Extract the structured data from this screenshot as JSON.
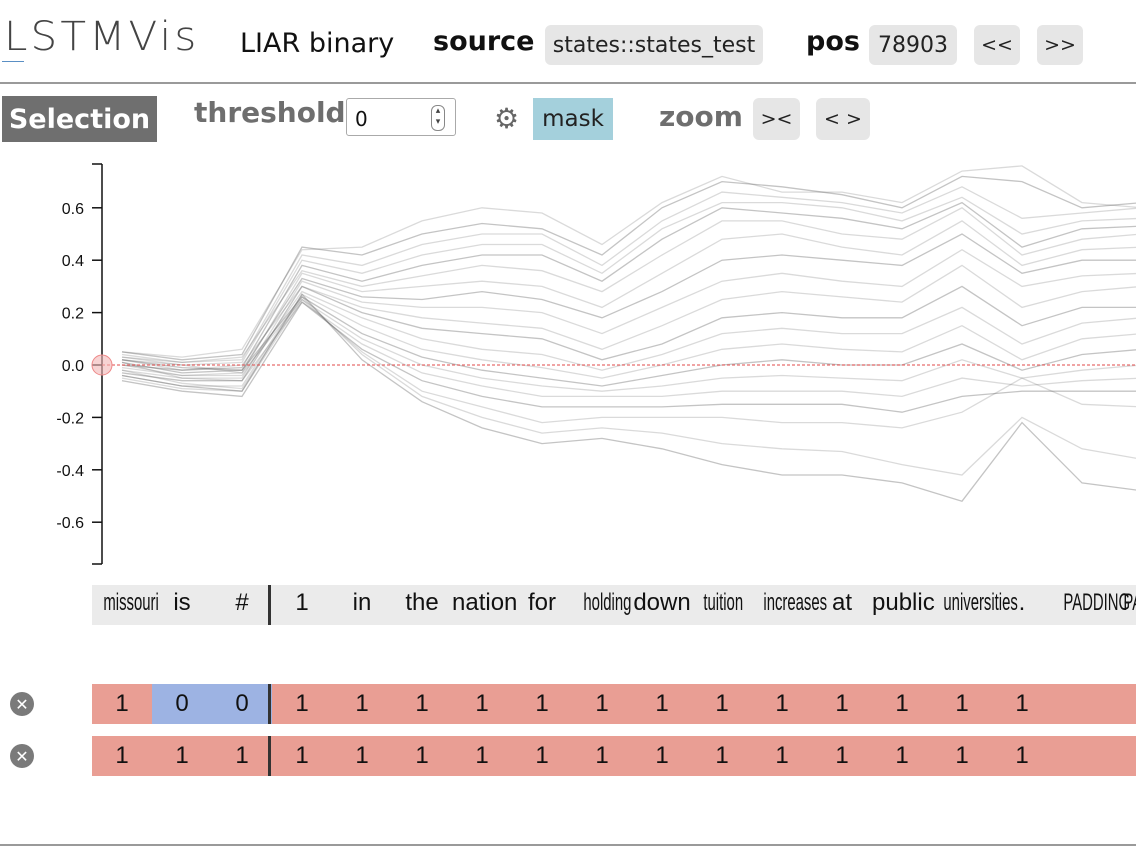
{
  "header": {
    "logo": "LSTMVis",
    "dataset": "LIAR binary",
    "source_label": "source",
    "source_value": "states::states_test",
    "pos_label": "pos",
    "pos_value": "78903",
    "prev_label": "<<",
    "next_label": ">>"
  },
  "toolbar": {
    "selection_label": "Selection",
    "threshold_label": "threshold",
    "threshold_value": "0",
    "settings_icon": "gear-icon",
    "mask_label": "mask",
    "zoom_label": "zoom",
    "zoom_in_label": "><",
    "zoom_out_label": "< >"
  },
  "chart_data": {
    "type": "line",
    "ylim": [
      -0.75,
      0.75
    ],
    "yticks": [
      "0.6",
      "0.4",
      "0.2",
      "0.0",
      "-0.2",
      "-0.4",
      "-0.6"
    ],
    "threshold": 0.0,
    "x": [
      "missouri",
      "is",
      "#",
      "1",
      "in",
      "the",
      "nation",
      "for",
      "holding",
      "down",
      "tuition",
      "increases",
      "at",
      "public",
      "universities",
      ".",
      "PADDING",
      "PADDING"
    ],
    "series": [
      {
        "values": [
          0.05,
          0.02,
          0.04,
          0.45,
          0.42,
          0.5,
          0.54,
          0.52,
          0.42,
          0.6,
          0.7,
          0.68,
          0.65,
          0.6,
          0.72,
          0.7,
          0.6,
          0.62
        ]
      },
      {
        "values": [
          0.03,
          0.01,
          0.02,
          0.42,
          0.38,
          0.46,
          0.5,
          0.5,
          0.38,
          0.55,
          0.66,
          0.64,
          0.62,
          0.58,
          0.68,
          0.56,
          0.58,
          0.6
        ]
      },
      {
        "values": [
          0.02,
          0.0,
          0.01,
          0.4,
          0.35,
          0.42,
          0.46,
          0.46,
          0.35,
          0.52,
          0.62,
          0.62,
          0.6,
          0.55,
          0.64,
          0.5,
          0.55,
          0.56
        ]
      },
      {
        "values": [
          0.0,
          -0.02,
          -0.01,
          0.38,
          0.32,
          0.38,
          0.42,
          0.42,
          0.32,
          0.48,
          0.6,
          0.58,
          0.56,
          0.52,
          0.62,
          0.45,
          0.52,
          0.53
        ]
      },
      {
        "values": [
          0.04,
          0.01,
          0.03,
          0.36,
          0.3,
          0.34,
          0.38,
          0.36,
          0.28,
          0.42,
          0.55,
          0.55,
          0.5,
          0.48,
          0.6,
          0.42,
          0.48,
          0.5
        ]
      },
      {
        "values": [
          -0.01,
          -0.04,
          -0.03,
          0.35,
          0.28,
          0.3,
          0.32,
          0.3,
          0.22,
          0.35,
          0.48,
          0.5,
          0.45,
          0.42,
          0.55,
          0.38,
          0.44,
          0.45
        ]
      },
      {
        "values": [
          0.01,
          -0.03,
          -0.02,
          0.33,
          0.26,
          0.25,
          0.28,
          0.25,
          0.18,
          0.28,
          0.4,
          0.42,
          0.4,
          0.38,
          0.5,
          0.35,
          0.4,
          0.4
        ]
      },
      {
        "values": [
          -0.02,
          -0.05,
          -0.05,
          0.32,
          0.24,
          0.22,
          0.22,
          0.2,
          0.12,
          0.22,
          0.32,
          0.35,
          0.32,
          0.3,
          0.44,
          0.3,
          0.34,
          0.35
        ]
      },
      {
        "values": [
          0.02,
          -0.02,
          0.0,
          0.3,
          0.22,
          0.18,
          0.16,
          0.14,
          0.06,
          0.15,
          0.25,
          0.28,
          0.26,
          0.24,
          0.38,
          0.22,
          0.28,
          0.3
        ]
      },
      {
        "values": [
          -0.03,
          -0.06,
          -0.06,
          0.3,
          0.2,
          0.14,
          0.12,
          0.1,
          0.02,
          0.08,
          0.18,
          0.2,
          0.18,
          0.18,
          0.3,
          0.15,
          0.22,
          0.22
        ]
      },
      {
        "values": [
          0.0,
          -0.04,
          -0.04,
          0.28,
          0.18,
          0.1,
          0.06,
          0.04,
          -0.02,
          0.04,
          0.12,
          0.14,
          0.12,
          0.12,
          0.22,
          0.08,
          0.16,
          0.18
        ]
      },
      {
        "values": [
          -0.04,
          -0.08,
          -0.08,
          0.27,
          0.15,
          0.06,
          0.02,
          -0.01,
          -0.05,
          0.0,
          0.06,
          0.08,
          0.06,
          0.05,
          0.15,
          0.02,
          0.1,
          0.12
        ]
      },
      {
        "values": [
          0.02,
          -0.01,
          -0.02,
          0.26,
          0.12,
          0.03,
          -0.02,
          -0.05,
          -0.08,
          -0.04,
          0.0,
          0.02,
          0.0,
          0.0,
          0.08,
          -0.02,
          0.04,
          0.06
        ]
      },
      {
        "values": [
          -0.05,
          -0.09,
          -0.1,
          0.25,
          0.1,
          0.0,
          -0.05,
          -0.08,
          -0.1,
          -0.08,
          -0.05,
          -0.04,
          -0.05,
          -0.06,
          0.02,
          -0.05,
          -0.02,
          0.0
        ]
      },
      {
        "values": [
          0.01,
          -0.05,
          -0.06,
          0.24,
          0.08,
          -0.03,
          -0.08,
          -0.12,
          -0.12,
          -0.12,
          -0.1,
          -0.1,
          -0.1,
          -0.12,
          -0.05,
          -0.08,
          -0.06,
          -0.05
        ]
      },
      {
        "values": [
          -0.06,
          -0.1,
          -0.12,
          0.24,
          0.06,
          -0.06,
          -0.12,
          -0.16,
          -0.16,
          -0.16,
          -0.15,
          -0.15,
          -0.15,
          -0.18,
          -0.12,
          -0.1,
          -0.1,
          -0.1
        ]
      },
      {
        "values": [
          0.03,
          0.0,
          -0.03,
          0.25,
          0.05,
          -0.1,
          -0.16,
          -0.22,
          -0.2,
          -0.2,
          -0.2,
          -0.22,
          -0.22,
          -0.24,
          -0.18,
          -0.05,
          -0.15,
          -0.16
        ]
      },
      {
        "values": [
          -0.02,
          -0.07,
          -0.09,
          0.26,
          0.04,
          -0.12,
          -0.2,
          -0.26,
          -0.24,
          -0.26,
          -0.3,
          -0.32,
          -0.33,
          -0.38,
          -0.42,
          -0.2,
          -0.32,
          -0.36
        ]
      },
      {
        "values": [
          -0.04,
          -0.08,
          -0.1,
          0.27,
          0.02,
          -0.14,
          -0.24,
          -0.3,
          -0.28,
          -0.32,
          -0.38,
          -0.42,
          -0.42,
          -0.45,
          -0.52,
          -0.22,
          -0.45,
          -0.48
        ]
      },
      {
        "values": [
          0.05,
          0.03,
          0.06,
          0.44,
          0.45,
          0.55,
          0.6,
          0.58,
          0.46,
          0.62,
          0.72,
          0.66,
          0.66,
          0.62,
          0.74,
          0.76,
          0.62,
          0.6
        ]
      }
    ]
  },
  "words": [
    "missouri",
    "is",
    "#",
    "1",
    "in",
    "the",
    "nation",
    "for",
    "holding",
    "down",
    "tuition",
    "increases",
    "at",
    "public",
    "universities",
    ".",
    "PADDING",
    "PADDING"
  ],
  "rows": [
    {
      "remove_icon": "close-icon",
      "values": [
        "1",
        "0",
        "0",
        "1",
        "1",
        "1",
        "1",
        "1",
        "1",
        "1",
        "1",
        "1",
        "1",
        "1",
        "1",
        "1",
        "",
        ""
      ]
    },
    {
      "remove_icon": "close-icon",
      "values": [
        "1",
        "1",
        "1",
        "1",
        "1",
        "1",
        "1",
        "1",
        "1",
        "1",
        "1",
        "1",
        "1",
        "1",
        "1",
        "1",
        "",
        ""
      ]
    }
  ],
  "colors": {
    "active": "#e99e94",
    "inactive": "#9db3e3",
    "mask": "#a4d0dc",
    "threshold_line": "#e04a4a"
  }
}
